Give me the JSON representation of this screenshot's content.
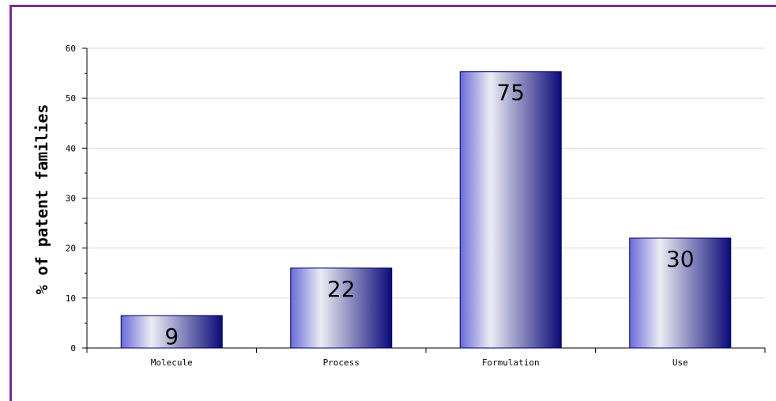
{
  "chart_data": {
    "type": "bar",
    "title": "",
    "xlabel": "",
    "ylabel": "% of patent families",
    "categories": [
      "Molecule",
      "Process",
      "Formulation",
      "Use"
    ],
    "values": [
      6.5,
      16,
      55.3,
      22
    ],
    "data_labels": [
      "9",
      "22",
      "75",
      "30"
    ],
    "ylim": [
      0,
      60
    ],
    "yticks": [
      "0",
      "10",
      "20",
      "30",
      "40",
      "50",
      "60"
    ],
    "grid": true,
    "legend": "none",
    "colors": {
      "bar_edge": "#000066",
      "bar_dark": "#0a0a78",
      "bar_mid": "#6a6ad8",
      "bar_light": "#ececf4",
      "grid": "#d9d9d9",
      "frame": "#7a2f8f"
    }
  }
}
